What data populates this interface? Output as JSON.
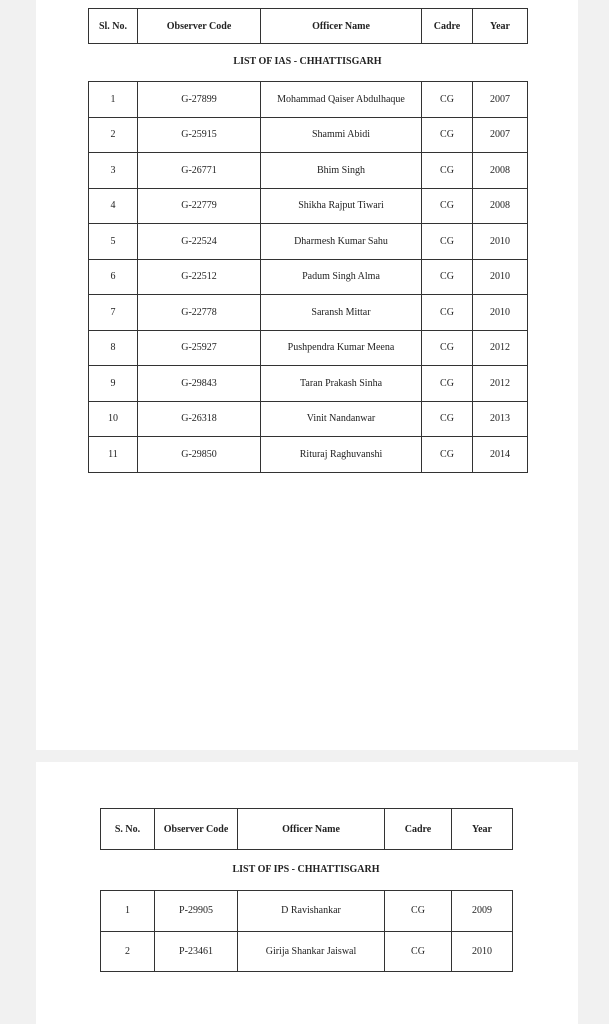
{
  "ias_section": {
    "headers": [
      "Sl. No.",
      "Observer Code",
      "Officer Name",
      "Cadre",
      "Year"
    ],
    "title": "LIST OF IAS - CHHATTISGARH",
    "rows": [
      [
        "1",
        "G-27899",
        "Mohammad Qaiser Abdulhaque",
        "CG",
        "2007"
      ],
      [
        "2",
        "G-25915",
        "Shammi Abidi",
        "CG",
        "2007"
      ],
      [
        "3",
        "G-26771",
        "Bhim Singh",
        "CG",
        "2008"
      ],
      [
        "4",
        "G-22779",
        "Shikha Rajput Tiwari",
        "CG",
        "2008"
      ],
      [
        "5",
        "G-22524",
        "Dharmesh Kumar Sahu",
        "CG",
        "2010"
      ],
      [
        "6",
        "G-22512",
        "Padum Singh Alma",
        "CG",
        "2010"
      ],
      [
        "7",
        "G-22778",
        "Saransh Mittar",
        "CG",
        "2010"
      ],
      [
        "8",
        "G-25927",
        "Pushpendra Kumar Meena",
        "CG",
        "2012"
      ],
      [
        "9",
        "G-29843",
        "Taran Prakash Sinha",
        "CG",
        "2012"
      ],
      [
        "10",
        "G-26318",
        "Vinit Nandanwar",
        "CG",
        "2013"
      ],
      [
        "11",
        "G-29850",
        "Rituraj Raghuvanshi",
        "CG",
        "2014"
      ]
    ]
  },
  "ips_section": {
    "headers": [
      "S. No.",
      "Observer Code",
      "Officer Name",
      "Cadre",
      "Year"
    ],
    "title": "LIST OF IPS - CHHATTISGARH",
    "rows": [
      [
        "1",
        "P-29905",
        "D Ravishankar",
        "CG",
        "2009"
      ],
      [
        "2",
        "P-23461",
        "Girija Shankar Jaiswal",
        "CG",
        "2010"
      ]
    ]
  }
}
